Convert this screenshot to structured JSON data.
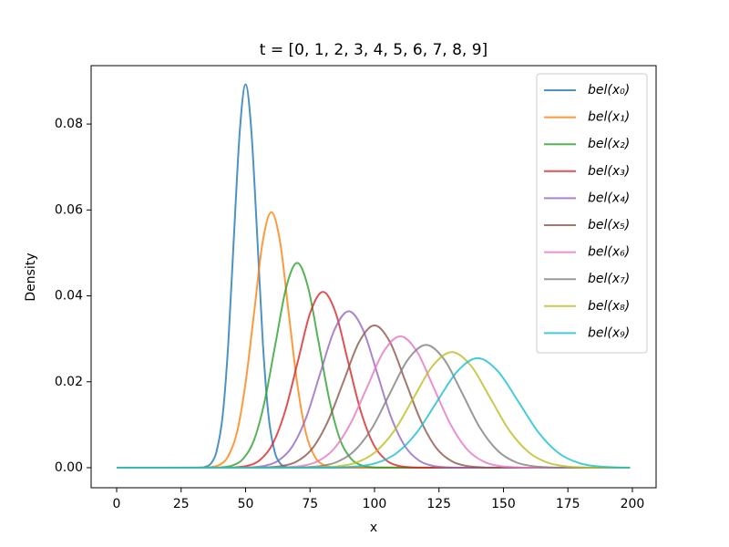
{
  "chart_data": {
    "type": "line",
    "title": "t = [0, 1, 2, 3, 4, 5, 6, 7, 8, 9]",
    "xlabel": "x",
    "ylabel": "Density",
    "xlim": [
      -9.9,
      209.2
    ],
    "ylim": [
      -0.00467,
      0.0936
    ],
    "xticks": [
      0,
      25,
      50,
      75,
      100,
      125,
      150,
      175,
      200
    ],
    "yticks": [
      {
        "value": 0,
        "label": "0.00"
      },
      {
        "value": 0.02,
        "label": "0.02"
      },
      {
        "value": 0.04,
        "label": "0.04"
      },
      {
        "value": 0.06,
        "label": "0.06"
      },
      {
        "value": 0.08,
        "label": "0.08"
      }
    ],
    "legend": "upper right",
    "series": [
      {
        "name": "bel(x₀)",
        "color": "#1f77b4",
        "x": [
          0,
          32.1,
          34.3,
          36.6,
          38.8,
          41.1,
          43.3,
          45.5,
          47.8,
          50,
          52.2,
          54.5,
          56.7,
          58.9,
          61.2,
          63.4,
          65.7,
          67.9,
          199
        ],
        "values": [
          0,
          3e-05,
          0.0002,
          0.00099,
          0.00392,
          0.01207,
          0.02897,
          0.05411,
          0.07873,
          0.08921,
          0.07873,
          0.05411,
          0.02897,
          0.01207,
          0.00392,
          0.00099,
          0.0002,
          3e-05,
          0
        ]
      },
      {
        "name": "bel(x₁)",
        "color": "#ff7f0e",
        "x": [
          0,
          33.2,
          36.5,
          39.9,
          43.2,
          46.6,
          49.9,
          53.3,
          56.6,
          60,
          63.4,
          66.7,
          70.1,
          73.4,
          76.8,
          80.1,
          83.5,
          86.8,
          199
        ],
        "values": [
          0,
          2e-05,
          0.00013,
          0.00066,
          0.00261,
          0.00805,
          0.01931,
          0.03607,
          0.05248,
          0.05947,
          0.05248,
          0.03607,
          0.01931,
          0.00805,
          0.00261,
          0.00066,
          0.00013,
          2e-05,
          0
        ]
      },
      {
        "name": "bel(x₂)",
        "color": "#2ca02c",
        "x": [
          0,
          36.5,
          40.7,
          44.9,
          49.1,
          53.3,
          57.4,
          61.6,
          65.8,
          70,
          74.2,
          78.4,
          82.6,
          86.7,
          90.9,
          95.1,
          99.3,
          103.5,
          199
        ],
        "values": [
          0,
          2e-05,
          0.0001,
          0.00053,
          0.00209,
          0.00645,
          0.01548,
          0.02892,
          0.04208,
          0.04768,
          0.04208,
          0.02892,
          0.01548,
          0.00645,
          0.00209,
          0.00053,
          0.0001,
          2e-05,
          0
        ]
      },
      {
        "name": "bel(x₃)",
        "color": "#d62728",
        "x": [
          0,
          41.0,
          45.9,
          50.8,
          55.6,
          60.5,
          65.4,
          70.3,
          75.1,
          80,
          84.9,
          89.7,
          94.6,
          99.5,
          104.4,
          109.2,
          114.1,
          119.0,
          199
        ],
        "values": [
          0,
          1e-05,
          9e-05,
          0.00045,
          0.0018,
          0.00554,
          0.01329,
          0.02482,
          0.03612,
          0.04093,
          0.03612,
          0.02482,
          0.01329,
          0.00554,
          0.0018,
          0.00045,
          9e-05,
          1e-05,
          0
        ]
      },
      {
        "name": "bel(x₄)",
        "color": "#9467bd",
        "x": [
          0,
          46.2,
          51.7,
          57.1,
          62.6,
          68.1,
          73.6,
          79.0,
          84.5,
          90,
          95.5,
          101.0,
          106.4,
          111.9,
          117.4,
          122.9,
          128.3,
          133.8,
          199
        ],
        "values": [
          0,
          1e-05,
          8e-05,
          0.0004,
          0.0016,
          0.00493,
          0.01183,
          0.02209,
          0.03214,
          0.03642,
          0.03214,
          0.02209,
          0.01183,
          0.00493,
          0.0016,
          0.0004,
          8e-05,
          1e-05,
          0
        ]
      },
      {
        "name": "bel(x₅)",
        "color": "#8c564b",
        "x": [
          0,
          51.8,
          57.9,
          63.9,
          69.9,
          75.9,
          81.9,
          88.0,
          94.0,
          100,
          106.0,
          112.0,
          118.1,
          124.1,
          130.1,
          136.1,
          142.1,
          148.2,
          199
        ],
        "values": [
          0,
          1e-05,
          7e-05,
          0.00037,
          0.00145,
          0.00448,
          0.01076,
          0.02009,
          0.02924,
          0.03313,
          0.02924,
          0.02009,
          0.01076,
          0.00448,
          0.00145,
          0.00037,
          7e-05,
          1e-05,
          0
        ]
      },
      {
        "name": "bel(x₆)",
        "color": "#e377c2",
        "x": [
          0,
          57.8,
          64.4,
          70.9,
          77.4,
          83.9,
          90.4,
          97.0,
          103.5,
          110,
          116.5,
          123.0,
          129.6,
          136.1,
          142.6,
          149.1,
          155.6,
          162.2,
          199
        ],
        "values": [
          0,
          1e-05,
          7e-05,
          0.00034,
          0.00134,
          0.00414,
          0.00994,
          0.01856,
          0.027,
          0.0306,
          0.027,
          0.01856,
          0.00994,
          0.00414,
          0.00134,
          0.00034,
          7e-05,
          1e-05,
          0
        ]
      },
      {
        "name": "bel(x₇)",
        "color": "#7f7f7f",
        "x": [
          0,
          64.1,
          71.1,
          78.1,
          85.1,
          92.1,
          99.1,
          106.0,
          113.0,
          120,
          127.0,
          134.0,
          140.9,
          147.9,
          154.9,
          161.9,
          168.9,
          175.9,
          199
        ],
        "values": [
          0,
          1e-05,
          6e-05,
          0.00032,
          0.00125,
          0.00387,
          0.00928,
          0.01733,
          0.02521,
          0.02857,
          0.02521,
          0.01733,
          0.00928,
          0.00387,
          0.00125,
          0.00032,
          6e-05,
          1e-05,
          0
        ]
      },
      {
        "name": "bel(x₈)",
        "color": "#bcbd22",
        "x": [
          0,
          70.7,
          78.1,
          85.5,
          92.9,
          100.3,
          107.8,
          115.2,
          122.6,
          130,
          137.4,
          144.8,
          152.2,
          159.7,
          167.1,
          174.5,
          181.9,
          189.3,
          199
        ],
        "values": [
          0,
          1e-05,
          6e-05,
          0.0003,
          0.00118,
          0.00364,
          0.00873,
          0.01631,
          0.02374,
          0.0269,
          0.02374,
          0.01631,
          0.00873,
          0.00364,
          0.00118,
          0.0003,
          6e-05,
          1e-05,
          0
        ]
      },
      {
        "name": "bel(x₉)",
        "color": "#17becf",
        "x": [
          0,
          77.4,
          85.2,
          93.0,
          100.9,
          108.7,
          116.5,
          124.3,
          132.2,
          140,
          147.8,
          155.7,
          163.5,
          171.3,
          179.1,
          187.0,
          194.8,
          199
        ],
        "values": [
          0,
          1e-05,
          6e-05,
          0.00028,
          0.00112,
          0.00345,
          0.00828,
          0.01546,
          0.02249,
          0.02549,
          0.02249,
          0.01546,
          0.00828,
          0.00345,
          0.00112,
          0.00028,
          6e-05,
          2e-05
        ]
      }
    ]
  }
}
